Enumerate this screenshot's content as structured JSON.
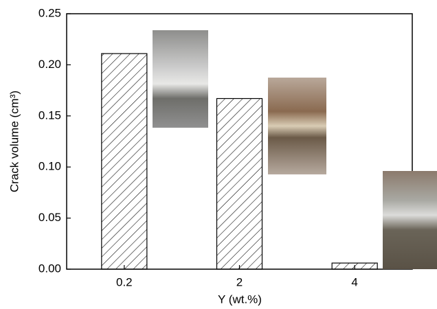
{
  "chart_data": {
    "type": "bar",
    "xlabel": "Y (wt.%)",
    "ylabel": "Crack volume (cm³)",
    "categories": [
      "0.2",
      "2",
      "4"
    ],
    "values": [
      0.211,
      0.167,
      0.006
    ],
    "color": "#000000",
    "ylim": [
      0,
      0.25
    ],
    "yticks": [
      {
        "value": 0,
        "label": "0.00"
      },
      0.05,
      {
        "value": 0.1,
        "label": "0.10"
      },
      0.15,
      {
        "value": 0.2,
        "label": "0.20"
      },
      0.25
    ]
  }
}
